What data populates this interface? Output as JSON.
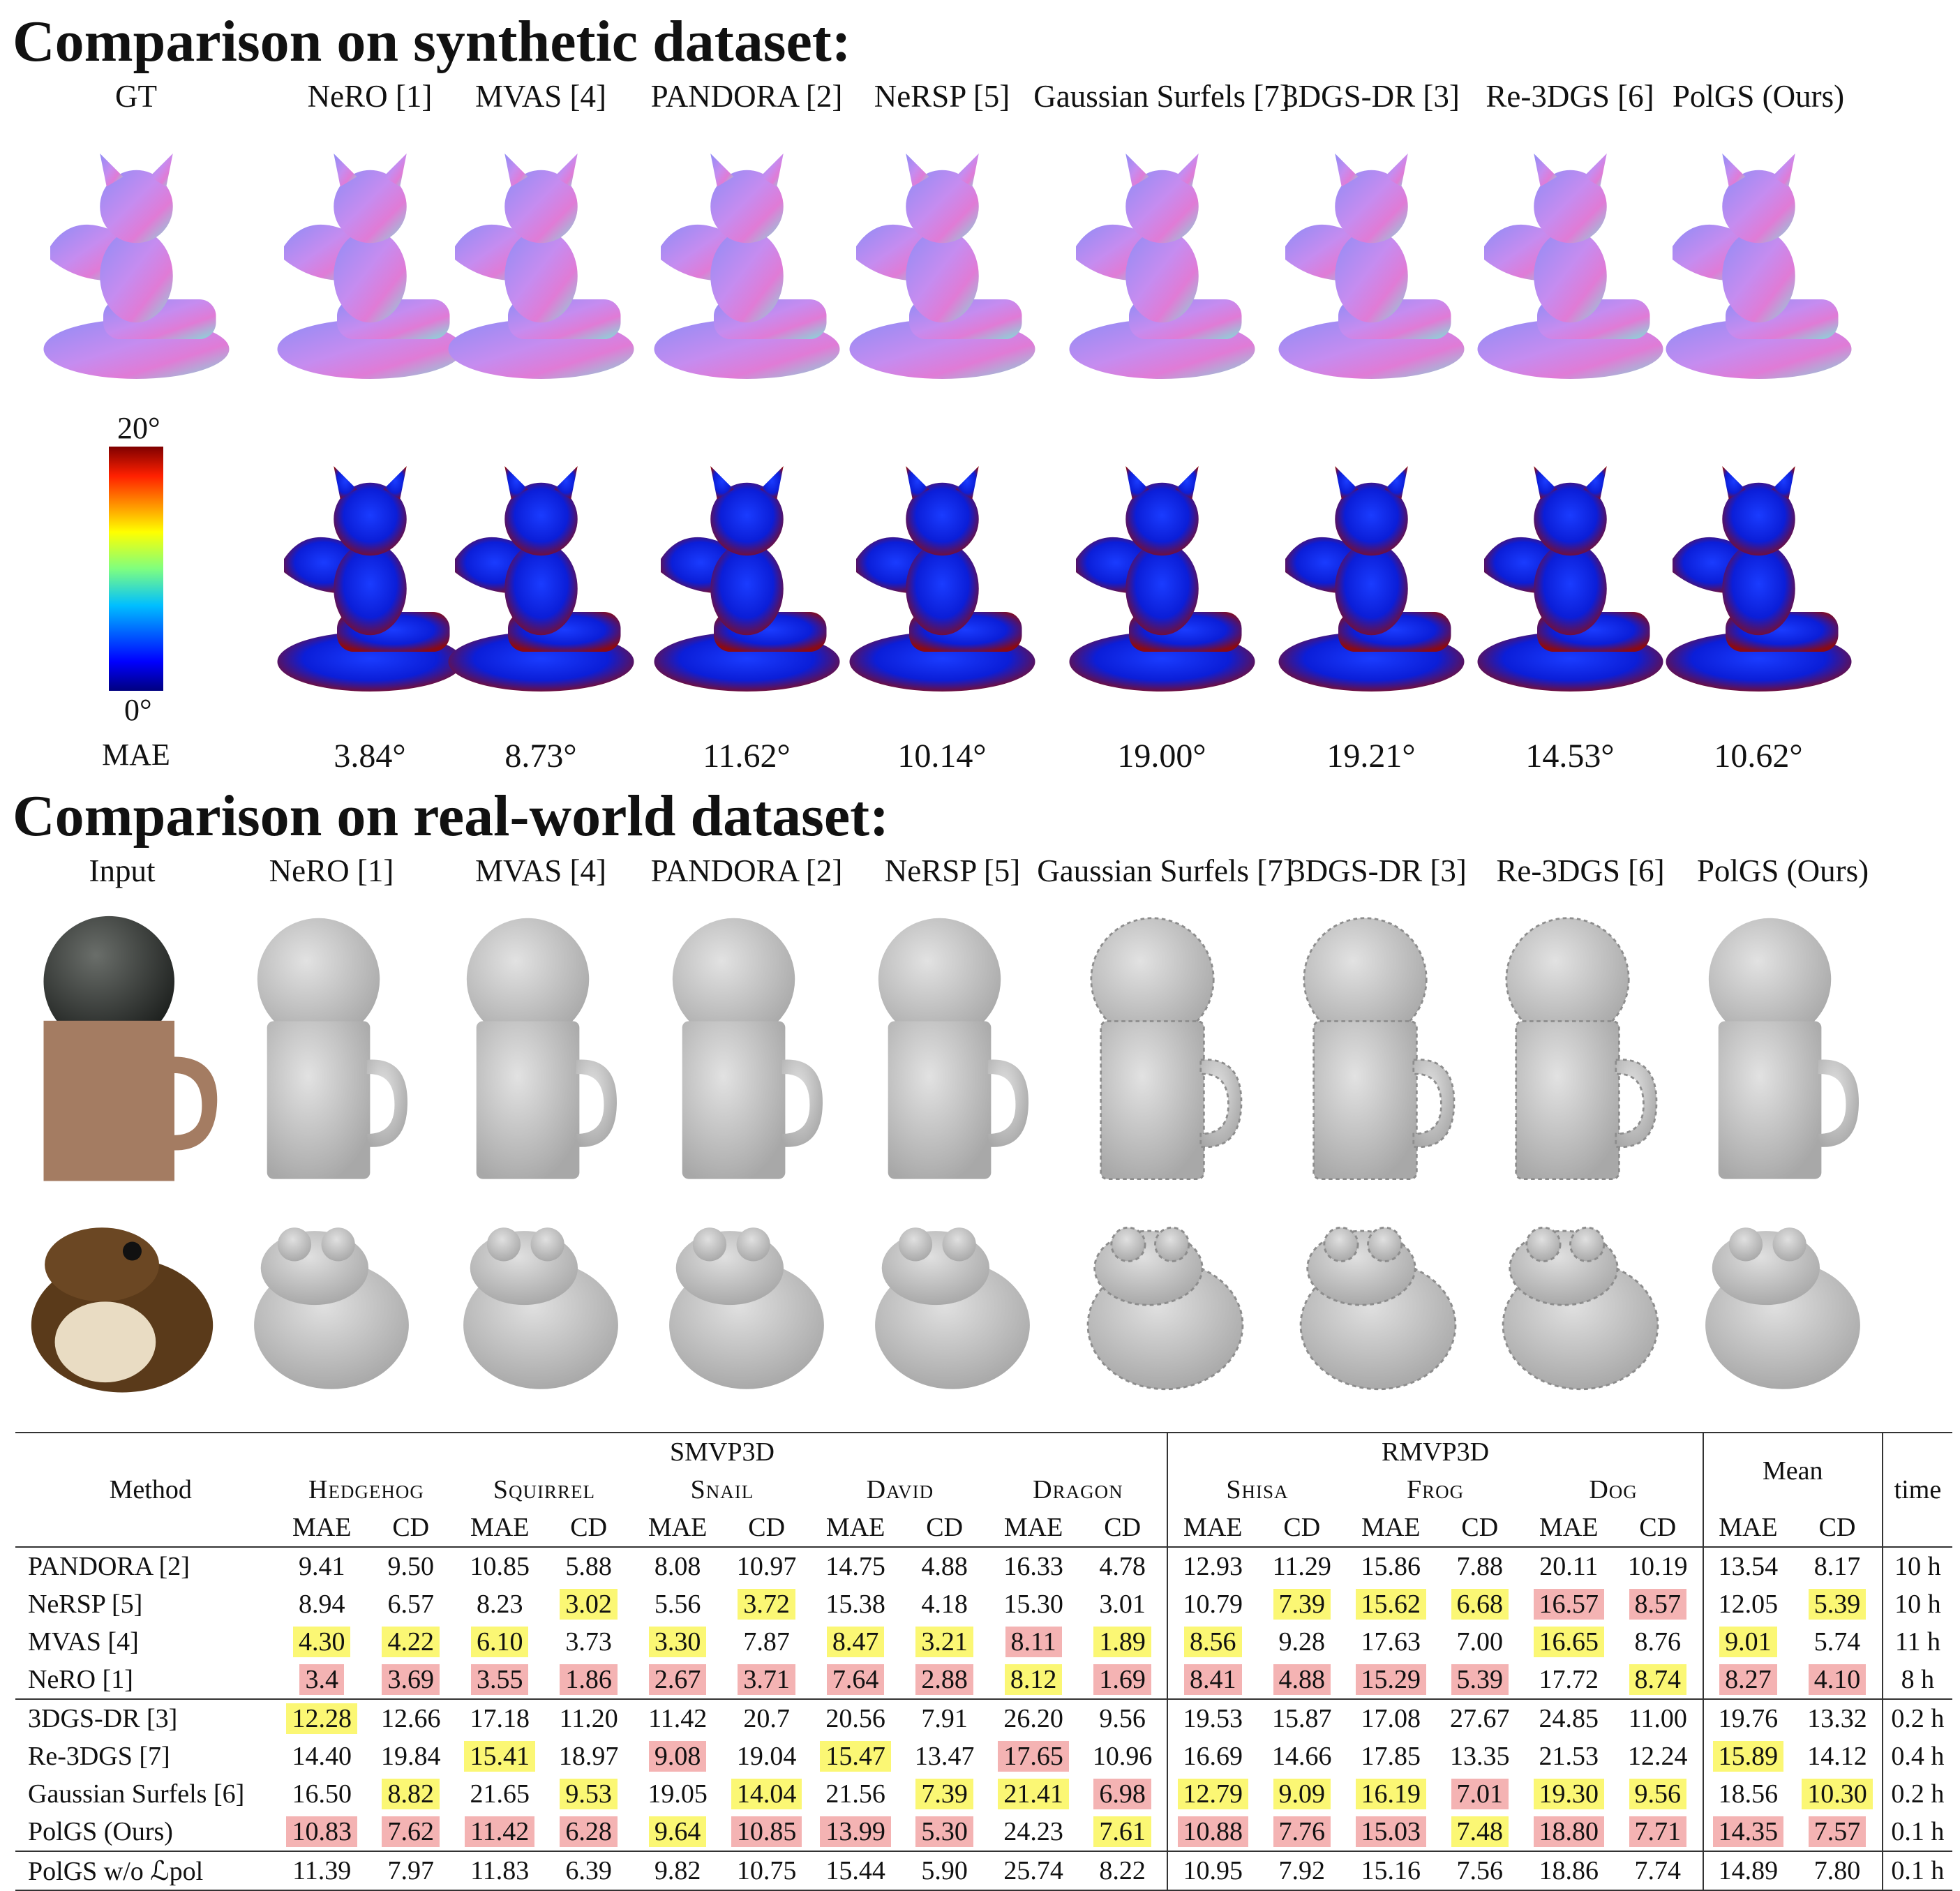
{
  "synthetic": {
    "title": "Comparison on synthetic dataset:",
    "methods": [
      "GT",
      "NeRO [1]",
      "MVAS [4]",
      "PANDORA [2]",
      "NeRSP [5]",
      "Gaussian Surfels [7]",
      "3DGS-DR [3]",
      "Re-3DGS [6]",
      "PolGS (Ours)"
    ],
    "colorbar": {
      "max_label": "20°",
      "min_label": "0°"
    },
    "mae_label": "MAE",
    "mae_values": [
      "3.84°",
      "8.73°",
      "11.62°",
      "10.14°",
      "19.00°",
      "19.21°",
      "14.53°",
      "10.62°"
    ]
  },
  "realworld": {
    "title": "Comparison on real-world dataset:",
    "methods": [
      "Input",
      "NeRO [1]",
      "MVAS [4]",
      "PANDORA [2]",
      "NeRSP [5]",
      "Gaussian Surfels [7]",
      "3DGS-DR [3]",
      "Re-3DGS [6]",
      "PolGS (Ours)"
    ]
  },
  "colors": {
    "highlight_best": "#f4b3b3",
    "highlight_second": "#fbf774",
    "mesh_gray": "#c9c9c9"
  },
  "table": {
    "method_header": "Method",
    "groups": [
      "SMVP3D",
      "RMVP3D",
      "Mean",
      "time"
    ],
    "objects": [
      "Hedgehog",
      "Squirrel",
      "Snail",
      "David",
      "Dragon",
      "Shisa",
      "Frog",
      "Dog"
    ],
    "metrics": [
      "MAE",
      "CD"
    ],
    "rows": [
      {
        "method": "PANDORA [2]",
        "values": [
          {
            "v": "9.41"
          },
          {
            "v": "9.50"
          },
          {
            "v": "10.85"
          },
          {
            "v": "5.88"
          },
          {
            "v": "8.08"
          },
          {
            "v": "10.97"
          },
          {
            "v": "14.75"
          },
          {
            "v": "4.88"
          },
          {
            "v": "16.33"
          },
          {
            "v": "4.78"
          },
          {
            "v": "12.93"
          },
          {
            "v": "11.29"
          },
          {
            "v": "15.86"
          },
          {
            "v": "7.88"
          },
          {
            "v": "20.11"
          },
          {
            "v": "10.19"
          },
          {
            "v": "13.54"
          },
          {
            "v": "8.17"
          }
        ],
        "time": "10 h"
      },
      {
        "method": "NeRSP [5]",
        "values": [
          {
            "v": "8.94"
          },
          {
            "v": "6.57"
          },
          {
            "v": "8.23"
          },
          {
            "v": "3.02",
            "h": "y"
          },
          {
            "v": "5.56"
          },
          {
            "v": "3.72",
            "h": "y"
          },
          {
            "v": "15.38"
          },
          {
            "v": "4.18"
          },
          {
            "v": "15.30"
          },
          {
            "v": "3.01"
          },
          {
            "v": "10.79"
          },
          {
            "v": "7.39",
            "h": "y"
          },
          {
            "v": "15.62",
            "h": "y"
          },
          {
            "v": "6.68",
            "h": "y"
          },
          {
            "v": "16.57",
            "h": "r"
          },
          {
            "v": "8.57",
            "h": "r"
          },
          {
            "v": "12.05"
          },
          {
            "v": "5.39",
            "h": "y"
          }
        ],
        "time": "10 h"
      },
      {
        "method": "MVAS [4]",
        "values": [
          {
            "v": "4.30",
            "h": "y"
          },
          {
            "v": "4.22",
            "h": "y"
          },
          {
            "v": "6.10",
            "h": "y"
          },
          {
            "v": "3.73"
          },
          {
            "v": "3.30",
            "h": "y"
          },
          {
            "v": "7.87"
          },
          {
            "v": "8.47",
            "h": "y"
          },
          {
            "v": "3.21",
            "h": "y"
          },
          {
            "v": "8.11",
            "h": "r"
          },
          {
            "v": "1.89",
            "h": "y"
          },
          {
            "v": "8.56",
            "h": "y"
          },
          {
            "v": "9.28"
          },
          {
            "v": "17.63"
          },
          {
            "v": "7.00"
          },
          {
            "v": "16.65",
            "h": "y"
          },
          {
            "v": "8.76"
          },
          {
            "v": "9.01",
            "h": "y"
          },
          {
            "v": "5.74"
          }
        ],
        "time": "11 h"
      },
      {
        "method": "NeRO [1]",
        "values": [
          {
            "v": "3.4",
            "h": "r"
          },
          {
            "v": "3.69",
            "h": "r"
          },
          {
            "v": "3.55",
            "h": "r"
          },
          {
            "v": "1.86",
            "h": "r"
          },
          {
            "v": "2.67",
            "h": "r"
          },
          {
            "v": "3.71",
            "h": "r"
          },
          {
            "v": "7.64",
            "h": "r"
          },
          {
            "v": "2.88",
            "h": "r"
          },
          {
            "v": "8.12",
            "h": "y"
          },
          {
            "v": "1.69",
            "h": "r"
          },
          {
            "v": "8.41",
            "h": "r"
          },
          {
            "v": "4.88",
            "h": "r"
          },
          {
            "v": "15.29",
            "h": "r"
          },
          {
            "v": "5.39",
            "h": "r"
          },
          {
            "v": "17.72"
          },
          {
            "v": "8.74",
            "h": "y"
          },
          {
            "v": "8.27",
            "h": "r"
          },
          {
            "v": "4.10",
            "h": "r"
          }
        ],
        "time": "8 h"
      },
      {
        "method": "3DGS-DR [3]",
        "values": [
          {
            "v": "12.28",
            "h": "y"
          },
          {
            "v": "12.66"
          },
          {
            "v": "17.18"
          },
          {
            "v": "11.20"
          },
          {
            "v": "11.42"
          },
          {
            "v": "20.7"
          },
          {
            "v": "20.56"
          },
          {
            "v": "7.91"
          },
          {
            "v": "26.20"
          },
          {
            "v": "9.56"
          },
          {
            "v": "19.53"
          },
          {
            "v": "15.87"
          },
          {
            "v": "17.08"
          },
          {
            "v": "27.67"
          },
          {
            "v": "24.85"
          },
          {
            "v": "11.00"
          },
          {
            "v": "19.76"
          },
          {
            "v": "13.32"
          }
        ],
        "time": "0.2 h"
      },
      {
        "method": "Re-3DGS [7]",
        "values": [
          {
            "v": "14.40"
          },
          {
            "v": "19.84"
          },
          {
            "v": "15.41",
            "h": "y"
          },
          {
            "v": "18.97"
          },
          {
            "v": "9.08",
            "h": "r"
          },
          {
            "v": "19.04"
          },
          {
            "v": "15.47",
            "h": "y"
          },
          {
            "v": "13.47"
          },
          {
            "v": "17.65",
            "h": "r"
          },
          {
            "v": "10.96"
          },
          {
            "v": "16.69"
          },
          {
            "v": "14.66"
          },
          {
            "v": "17.85"
          },
          {
            "v": "13.35"
          },
          {
            "v": "21.53"
          },
          {
            "v": "12.24"
          },
          {
            "v": "15.89",
            "h": "y"
          },
          {
            "v": "14.12"
          }
        ],
        "time": "0.4 h"
      },
      {
        "method": "Gaussian Surfels [6]",
        "values": [
          {
            "v": "16.50"
          },
          {
            "v": "8.82",
            "h": "y"
          },
          {
            "v": "21.65"
          },
          {
            "v": "9.53",
            "h": "y"
          },
          {
            "v": "19.05"
          },
          {
            "v": "14.04",
            "h": "y"
          },
          {
            "v": "21.56"
          },
          {
            "v": "7.39",
            "h": "y"
          },
          {
            "v": "21.41",
            "h": "y"
          },
          {
            "v": "6.98",
            "h": "r"
          },
          {
            "v": "12.79",
            "h": "y"
          },
          {
            "v": "9.09",
            "h": "y"
          },
          {
            "v": "16.19",
            "h": "y"
          },
          {
            "v": "7.01",
            "h": "r"
          },
          {
            "v": "19.30",
            "h": "y"
          },
          {
            "v": "9.56",
            "h": "y"
          },
          {
            "v": "18.56"
          },
          {
            "v": "10.30",
            "h": "y"
          }
        ],
        "time": "0.2 h"
      },
      {
        "method": "PolGS (Ours)",
        "values": [
          {
            "v": "10.83",
            "h": "r"
          },
          {
            "v": "7.62",
            "h": "r"
          },
          {
            "v": "11.42",
            "h": "r"
          },
          {
            "v": "6.28",
            "h": "r"
          },
          {
            "v": "9.64",
            "h": "y"
          },
          {
            "v": "10.85",
            "h": "r"
          },
          {
            "v": "13.99",
            "h": "r"
          },
          {
            "v": "5.30",
            "h": "r"
          },
          {
            "v": "24.23"
          },
          {
            "v": "7.61",
            "h": "y"
          },
          {
            "v": "10.88",
            "h": "r"
          },
          {
            "v": "7.76",
            "h": "r"
          },
          {
            "v": "15.03",
            "h": "r"
          },
          {
            "v": "7.48",
            "h": "y"
          },
          {
            "v": "18.80",
            "h": "r"
          },
          {
            "v": "7.71",
            "h": "r"
          },
          {
            "v": "14.35",
            "h": "r"
          },
          {
            "v": "7.57",
            "h": "r"
          }
        ],
        "time": "0.1 h"
      },
      {
        "method": "PolGS w/o ℒpol",
        "values": [
          {
            "v": "11.39"
          },
          {
            "v": "7.97"
          },
          {
            "v": "11.83"
          },
          {
            "v": "6.39"
          },
          {
            "v": "9.82"
          },
          {
            "v": "10.75"
          },
          {
            "v": "15.44"
          },
          {
            "v": "5.90"
          },
          {
            "v": "25.74"
          },
          {
            "v": "8.22"
          },
          {
            "v": "10.95"
          },
          {
            "v": "7.92"
          },
          {
            "v": "15.16"
          },
          {
            "v": "7.56"
          },
          {
            "v": "18.86"
          },
          {
            "v": "7.74"
          },
          {
            "v": "14.89"
          },
          {
            "v": "7.80"
          }
        ],
        "time": "0.1 h"
      }
    ]
  }
}
